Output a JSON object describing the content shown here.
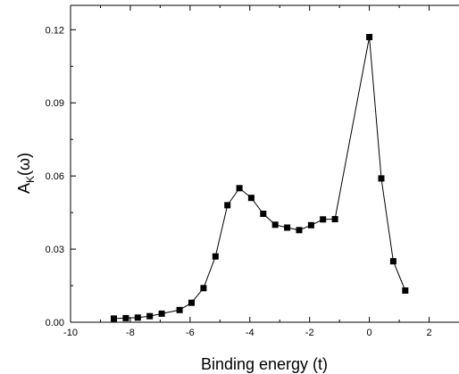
{
  "chart_data": {
    "type": "line",
    "xlabel": "Binding energy (t)",
    "ylabel_main": "A",
    "ylabel_sub": "K",
    "ylabel_tail": "(ω)",
    "xlim": [
      -10,
      3
    ],
    "ylim": [
      0,
      0.13
    ],
    "x_ticks": [
      -10,
      -8,
      -6,
      -4,
      -2,
      0,
      2
    ],
    "x_tick_labels": [
      "-10",
      "-8",
      "-6",
      "-4",
      "-2",
      "0",
      "2"
    ],
    "y_ticks": [
      0.0,
      0.03,
      0.06,
      0.09,
      0.12
    ],
    "y_tick_labels": [
      "0.00",
      "0.03",
      "0.06",
      "0.09",
      "0.12"
    ],
    "marker": "square",
    "line_color": "#000000",
    "series": [
      {
        "x": [
          -8.55,
          -8.15,
          -7.75,
          -7.35,
          -6.95,
          -6.35,
          -5.95,
          -5.55,
          -5.15,
          -4.75,
          -4.35,
          -3.95,
          -3.55,
          -3.15,
          -2.75,
          -2.35,
          -1.95,
          -1.55,
          -1.15,
          0.0,
          0.4,
          0.8,
          1.2
        ],
        "y": [
          0.0015,
          0.0017,
          0.0019,
          0.0025,
          0.0035,
          0.005,
          0.008,
          0.014,
          0.027,
          0.048,
          0.055,
          0.051,
          0.0445,
          0.04,
          0.0388,
          0.0378,
          0.0398,
          0.0422,
          0.0423,
          0.117,
          0.059,
          0.025,
          0.013
        ],
        "_fix": "placeholder"
      }
    ]
  }
}
